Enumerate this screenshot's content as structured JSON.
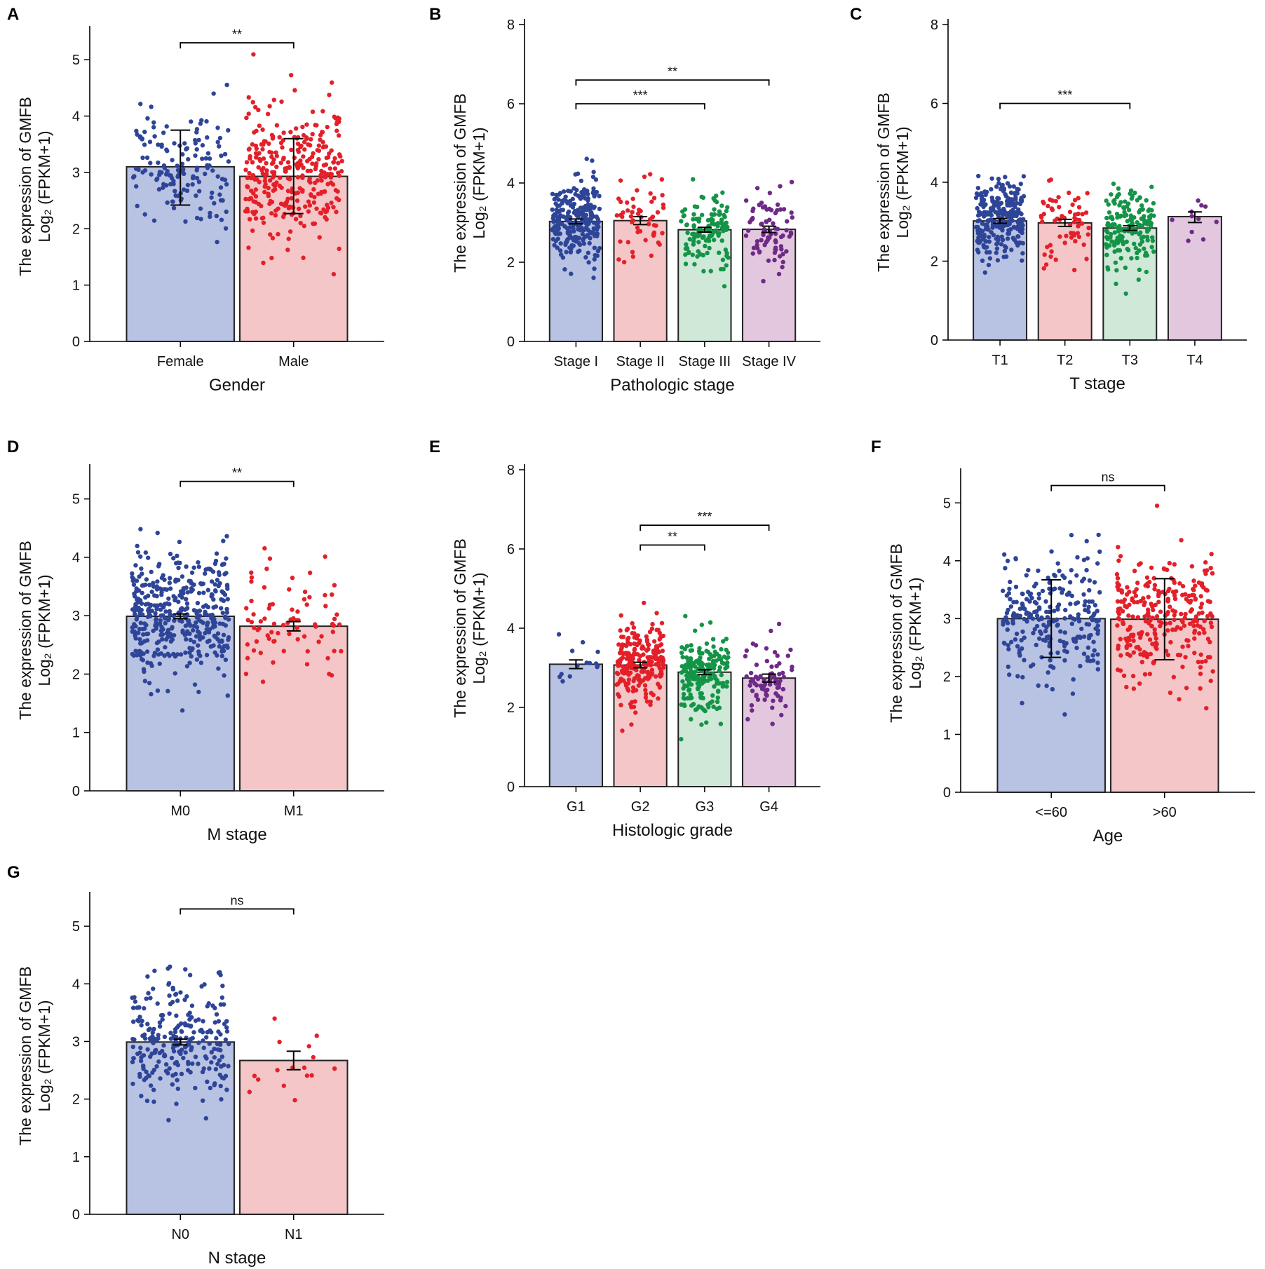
{
  "figure": {
    "palette": {
      "blue_fill": "#b8c2e3",
      "blue_dot": "#2e4597",
      "red_fill": "#f5c6c7",
      "red_dot": "#e3202a",
      "green_fill": "#cfe8d8",
      "green_dot": "#149447",
      "purple_fill": "#e3c7df",
      "purple_dot": "#6d2a86"
    }
  },
  "chart_data": [
    {
      "panel": "A",
      "type": "bar",
      "categories": [
        "Female",
        "Male"
      ],
      "values": [
        3.1,
        2.93
      ],
      "error": [
        [
          2.42,
          3.75
        ],
        [
          2.27,
          3.6
        ]
      ],
      "colors": [
        "blue",
        "red"
      ],
      "n": [
        150,
        330
      ],
      "spread": [
        0.55,
        0.6
      ],
      "xlabel": "Gender",
      "ylabel": [
        "The expression of GMFB",
        "Log₂ (FPKM+1)"
      ],
      "ylim": [
        0,
        5.5
      ],
      "yticks": [
        0,
        1,
        2,
        3,
        4,
        5
      ],
      "comparisons": [
        {
          "from": 0,
          "to": 1,
          "y": 5.3,
          "label": "**"
        }
      ]
    },
    {
      "panel": "B",
      "type": "bar",
      "categories": [
        "Stage I",
        "Stage II",
        "Stage III",
        "Stage IV"
      ],
      "values": [
        3.03,
        3.05,
        2.82,
        2.83
      ],
      "error": [
        [
          2.97,
          3.09
        ],
        [
          2.95,
          3.15
        ],
        [
          2.76,
          2.88
        ],
        [
          2.75,
          2.91
        ]
      ],
      "colors": [
        "blue",
        "red",
        "green",
        "purple"
      ],
      "n": [
        260,
        55,
        120,
        80
      ],
      "spread": [
        0.5,
        0.5,
        0.5,
        0.5
      ],
      "xlabel": "Pathologic stage",
      "ylabel": [
        "The expression of GMFB",
        "Log₂ (FPKM+1)"
      ],
      "ylim": [
        0,
        8
      ],
      "yticks": [
        0,
        2,
        4,
        6,
        8
      ],
      "comparisons": [
        {
          "from": 0,
          "to": 3,
          "y": 6.6,
          "label": "**"
        },
        {
          "from": 0,
          "to": 2,
          "y": 6.0,
          "label": "***"
        }
      ]
    },
    {
      "panel": "C",
      "type": "bar",
      "categories": [
        "T1",
        "T2",
        "T3",
        "T4"
      ],
      "values": [
        3.02,
        2.97,
        2.84,
        3.13
      ],
      "error": [
        [
          2.96,
          3.08
        ],
        [
          2.88,
          3.06
        ],
        [
          2.78,
          2.9
        ],
        [
          2.98,
          3.25
        ]
      ],
      "colors": [
        "blue",
        "red",
        "green",
        "purple"
      ],
      "n": [
        270,
        65,
        165,
        11
      ],
      "spread": [
        0.5,
        0.5,
        0.5,
        0.35
      ],
      "xlabel": "T stage",
      "ylabel": [
        "The expression of GMFB",
        "Log₂ (FPKM+1)"
      ],
      "ylim": [
        0,
        8
      ],
      "yticks": [
        0,
        2,
        4,
        6,
        8
      ],
      "comparisons": [
        {
          "from": 0,
          "to": 2,
          "y": 6.0,
          "label": "***"
        }
      ]
    },
    {
      "panel": "D",
      "type": "bar",
      "categories": [
        "M0",
        "M1"
      ],
      "values": [
        2.99,
        2.82
      ],
      "error": [
        [
          2.95,
          3.03
        ],
        [
          2.74,
          2.9
        ]
      ],
      "colors": [
        "blue",
        "red"
      ],
      "n": [
        420,
        78
      ],
      "spread": [
        0.55,
        0.55
      ],
      "xlabel": "M stage",
      "ylabel": [
        "The expression of GMFB",
        "Log₂ (FPKM+1)"
      ],
      "ylim": [
        0,
        5.5
      ],
      "yticks": [
        0,
        1,
        2,
        3,
        4,
        5
      ],
      "comparisons": [
        {
          "from": 0,
          "to": 1,
          "y": 5.3,
          "label": "**"
        }
      ]
    },
    {
      "panel": "E",
      "type": "bar",
      "categories": [
        "G1",
        "G2",
        "G3",
        "G4"
      ],
      "values": [
        3.09,
        3.07,
        2.89,
        2.74
      ],
      "error": [
        [
          2.98,
          3.2
        ],
        [
          3.0,
          3.14
        ],
        [
          2.83,
          2.95
        ],
        [
          2.64,
          2.84
        ]
      ],
      "colors": [
        "blue",
        "red",
        "green",
        "purple"
      ],
      "n": [
        14,
        230,
        200,
        75
      ],
      "spread": [
        0.3,
        0.5,
        0.5,
        0.5
      ],
      "xlabel": "Histologic grade",
      "ylabel": [
        "The expression of GMFB",
        "Log₂ (FPKM+1)"
      ],
      "ylim": [
        0,
        8
      ],
      "yticks": [
        0,
        2,
        4,
        6,
        8
      ],
      "comparisons": [
        {
          "from": 1,
          "to": 3,
          "y": 6.6,
          "label": "***"
        },
        {
          "from": 1,
          "to": 2,
          "y": 6.1,
          "label": "**"
        }
      ]
    },
    {
      "panel": "F",
      "type": "bar",
      "categories": [
        "<=60",
        ">60"
      ],
      "values": [
        3.0,
        2.99
      ],
      "error": [
        [
          2.33,
          3.67
        ],
        [
          2.29,
          3.69
        ]
      ],
      "colors": [
        "blue",
        "red"
      ],
      "n": [
        250,
        280
      ],
      "spread": [
        0.55,
        0.55
      ],
      "xlabel": "Age",
      "ylabel": [
        "The expression of GMFB",
        "Log₂ (FPKM+1)"
      ],
      "ylim": [
        0,
        5.5
      ],
      "yticks": [
        0,
        1,
        2,
        3,
        4,
        5
      ],
      "comparisons": [
        {
          "from": 0,
          "to": 1,
          "y": 5.3,
          "label": "ns"
        }
      ]
    },
    {
      "panel": "G",
      "type": "bar",
      "categories": [
        "N0",
        "N1"
      ],
      "values": [
        2.99,
        2.67
      ],
      "error": [
        [
          2.94,
          3.04
        ],
        [
          2.51,
          2.83
        ]
      ],
      "colors": [
        "blue",
        "red"
      ],
      "n": [
        250,
        16
      ],
      "spread": [
        0.55,
        0.5
      ],
      "xlabel": "N stage",
      "ylabel": [
        "The expression of GMFB",
        "Log₂ (FPKM+1)"
      ],
      "ylim": [
        0,
        5.5
      ],
      "yticks": [
        0,
        1,
        2,
        3,
        4,
        5
      ],
      "comparisons": [
        {
          "from": 0,
          "to": 1,
          "y": 5.3,
          "label": "ns"
        }
      ]
    }
  ]
}
